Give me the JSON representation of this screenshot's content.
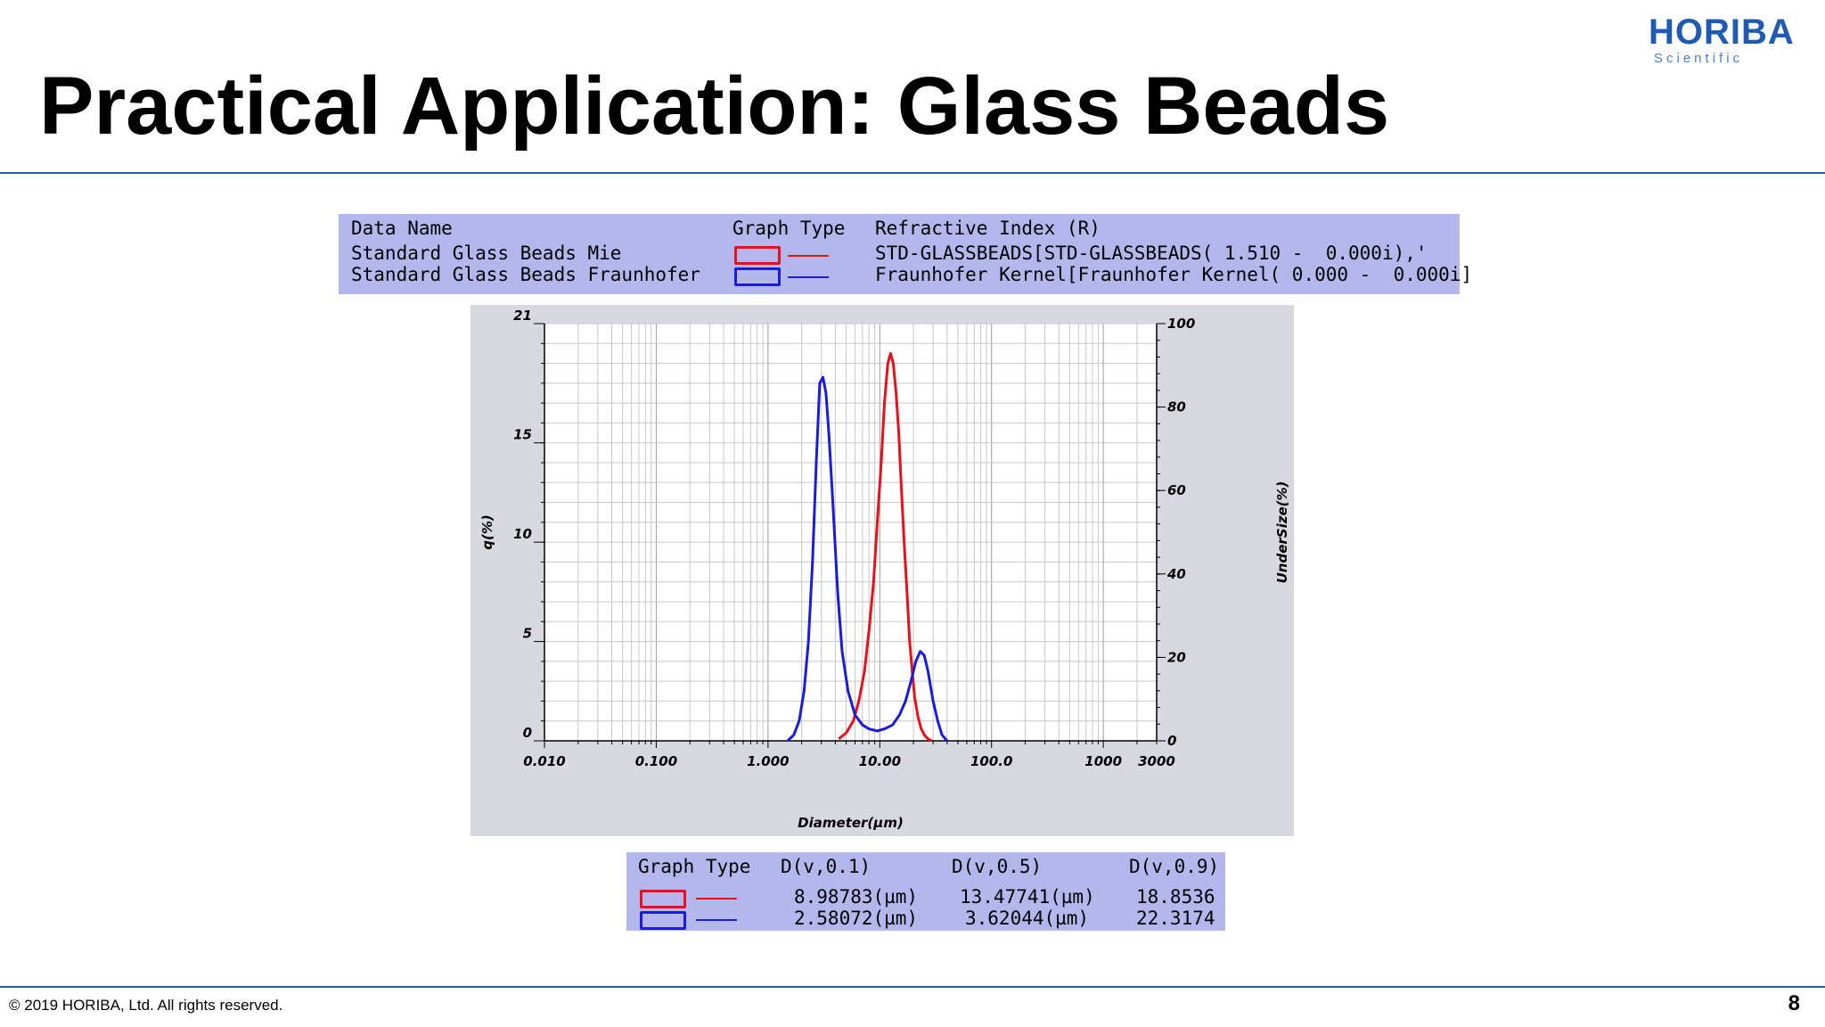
{
  "header": {
    "title": "Practical Application: Glass Beads",
    "logo_text": "HORIBA",
    "logo_subtext": "Scientific"
  },
  "legend_table": {
    "headers": {
      "data_name": "Data Name",
      "graph_type": "Graph Type",
      "refractive_index": "Refractive Index (R)"
    },
    "rows": [
      {
        "name": "Standard Glass Beads Mie",
        "color": "#e8101a",
        "ri": "STD-GLASSBEADS[STD-GLASSBEADS( 1.510 -  0.000i),'"
      },
      {
        "name": "Standard Glass Beads Fraunhofer",
        "color": "#1a1ae0",
        "ri": "Fraunhofer Kernel[Fraunhofer Kernel( 0.000 -  0.000i]"
      }
    ]
  },
  "chart_data": {
    "type": "line",
    "xlabel": "Diameter(µm)",
    "ylabel": "q(%)",
    "y2label": "UnderSize(%)",
    "xscale": "log",
    "xlim": [
      0.01,
      3000
    ],
    "ylim": [
      0,
      21
    ],
    "y2lim": [
      0,
      100
    ],
    "x_ticks": [
      "0.010",
      "0.100",
      "1.000",
      "10.00",
      "100.0",
      "1000",
      "3000"
    ],
    "x_tick_values": [
      0.01,
      0.1,
      1,
      10,
      100,
      1000,
      3000
    ],
    "y_ticks": [
      "0",
      "5",
      "10",
      "15",
      "21"
    ],
    "y_tick_values": [
      0,
      5,
      10,
      15,
      21
    ],
    "y2_ticks": [
      "0",
      "20",
      "40",
      "60",
      "80",
      "100"
    ],
    "y2_tick_values": [
      0,
      20,
      40,
      60,
      80,
      100
    ],
    "grid": true,
    "series": [
      {
        "color": "#e8101a",
        "x": [
          4.3,
          5.0,
          5.8,
          6.5,
          7.3,
          8.0,
          8.8,
          9.5,
          10.3,
          11.0,
          11.8,
          12.5,
          13.2,
          14.0,
          14.8,
          15.5,
          16.5,
          17.5,
          18.5,
          19.5,
          20.5,
          22.0,
          23.5,
          25.0,
          27.0,
          29.0
        ],
        "y": [
          0.1,
          0.4,
          1.0,
          2.0,
          3.5,
          5.5,
          8.0,
          11.0,
          14.0,
          17.0,
          19.0,
          19.5,
          19.0,
          17.5,
          15.5,
          13.0,
          10.0,
          7.5,
          5.0,
          3.5,
          2.2,
          1.2,
          0.6,
          0.3,
          0.1,
          0.0
        ]
      },
      {
        "color": "#1a1ae0",
        "x": [
          1.5,
          1.7,
          1.9,
          2.1,
          2.3,
          2.5,
          2.7,
          2.9,
          3.1,
          3.3,
          3.5,
          3.8,
          4.2,
          4.6,
          5.2,
          6.0,
          7.0,
          8.0,
          9.5,
          11.0,
          13.0,
          15.0,
          17.0,
          19.0,
          21.0,
          23.0,
          25.0,
          27.0,
          30.0,
          33.0,
          36.0,
          40.0
        ],
        "y": [
          0.0,
          0.3,
          1.0,
          2.5,
          5.0,
          9.0,
          14.0,
          18.0,
          18.3,
          17.5,
          15.5,
          12.0,
          7.5,
          4.5,
          2.5,
          1.3,
          0.8,
          0.6,
          0.5,
          0.6,
          0.8,
          1.3,
          2.0,
          3.0,
          4.0,
          4.5,
          4.3,
          3.5,
          2.0,
          1.0,
          0.3,
          0.0
        ]
      }
    ]
  },
  "stats_table": {
    "headers": {
      "graph_type": "Graph Type",
      "d10": "D(v,0.1)",
      "d50": "D(v,0.5)",
      "d90": "D(v,0.9)"
    },
    "rows": [
      {
        "color": "#e8101a",
        "d10": "8.98783(µm)",
        "d50": "13.47741(µm)",
        "d90": "18.8536"
      },
      {
        "color": "#1a1ae0",
        "d10": "2.58072(µm)",
        "d50": "3.62044(µm)",
        "d90": "22.3174"
      }
    ]
  },
  "footer": {
    "copyright": "© 2019 HORIBA, Ltd. All rights reserved.",
    "page_number": "8"
  }
}
